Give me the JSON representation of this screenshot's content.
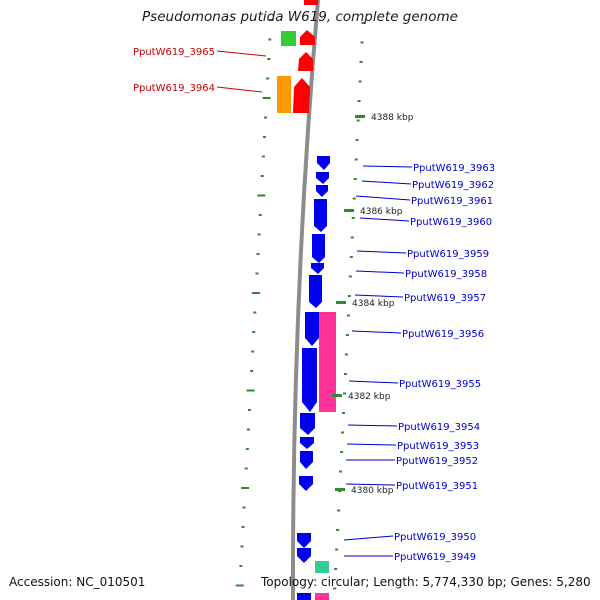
{
  "title": "Pseudomonas putida W619, complete genome",
  "footer": {
    "accession": "Accession: NC_010501",
    "topology": "Topology: circular; Length: 5,774,330 bp; Genes: 5,280"
  },
  "colors": {
    "backbone": "#8c8c8c",
    "tick": "#2e8b2e",
    "cds": "#0000ee",
    "trna": "#ff0000",
    "green_feature": "#33cc33",
    "orange_feature": "#ff9900",
    "pink_feature": "#ff3399",
    "teal_feature": "#33cc99",
    "left_label": "#cc0000",
    "right_label": "#0000cc"
  },
  "scale_labels": [
    "4388 kbp",
    "4386 kbp",
    "4384 kbp",
    "4382 kbp",
    "4380 kbp"
  ],
  "left_labels": [
    "PputW619_3965",
    "PputW619_3964"
  ],
  "right_labels": [
    "PputW619_3963",
    "PputW619_3962",
    "PputW619_3961",
    "PputW619_3960",
    "PputW619_3959",
    "PputW619_3958",
    "PputW619_3957",
    "PputW619_3956",
    "PputW619_3955",
    "PputW619_3954",
    "PputW619_3953",
    "PputW619_3952",
    "PputW619_3951",
    "PputW619_3950",
    "PputW619_3949"
  ]
}
